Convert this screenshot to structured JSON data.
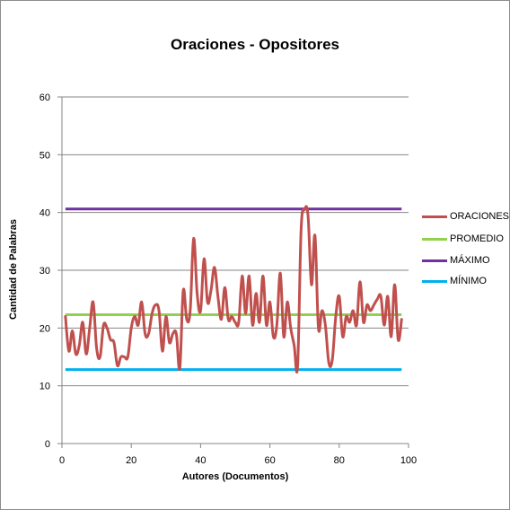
{
  "chart_data": {
    "type": "line",
    "title": "Oraciones - Opositores",
    "xlabel": "Autores (Documentos)",
    "ylabel": "Cantidad de Palabras",
    "xlim": [
      0,
      100
    ],
    "ylim": [
      0,
      60
    ],
    "x_ticks": [
      0,
      20,
      40,
      60,
      80,
      100
    ],
    "y_ticks": [
      0,
      10,
      20,
      30,
      40,
      50,
      60
    ],
    "grid": "horizontal",
    "legend_position": "right",
    "series": [
      {
        "name": "ORACIONES",
        "color": "#c0504d",
        "x": [
          1,
          2,
          3,
          4,
          5,
          6,
          7,
          8,
          9,
          10,
          11,
          12,
          13,
          14,
          15,
          16,
          17,
          18,
          19,
          20,
          21,
          22,
          23,
          24,
          25,
          26,
          27,
          28,
          29,
          30,
          31,
          32,
          33,
          34,
          35,
          36,
          37,
          38,
          39,
          40,
          41,
          42,
          43,
          44,
          45,
          46,
          47,
          48,
          49,
          50,
          51,
          52,
          53,
          54,
          55,
          56,
          57,
          58,
          59,
          60,
          61,
          62,
          63,
          64,
          65,
          66,
          67,
          68,
          69,
          70,
          71,
          72,
          73,
          74,
          75,
          76,
          77,
          78,
          79,
          80,
          81,
          82,
          83,
          84,
          85,
          86,
          87,
          88,
          89,
          90,
          91,
          92,
          93,
          94,
          95,
          96,
          97,
          98
        ],
        "values": [
          22,
          16,
          19.5,
          15.5,
          17,
          21,
          15.5,
          20,
          24.5,
          16.5,
          15,
          20.5,
          20,
          18,
          17.5,
          13.5,
          15,
          15,
          15,
          20,
          22,
          20.5,
          24.5,
          19,
          19,
          22.5,
          24,
          23,
          16,
          22,
          17.5,
          19,
          19,
          13,
          26.5,
          21.5,
          23,
          35.5,
          26,
          23,
          32,
          24.5,
          26.5,
          30.5,
          25.5,
          21.5,
          27,
          21.5,
          22,
          21,
          21,
          29,
          22.5,
          29,
          20.5,
          26,
          21,
          29,
          20.5,
          24.5,
          18.5,
          20.5,
          29.5,
          18.5,
          24.5,
          20,
          17,
          13.5,
          37,
          40.5,
          39.5,
          27.5,
          36,
          20,
          23,
          20.5,
          14,
          14.5,
          22,
          25.5,
          18.5,
          22,
          21,
          23,
          20.5,
          28,
          21,
          24,
          23,
          24,
          25,
          25.5,
          20.5,
          25.5,
          18.5,
          27.5,
          18,
          21.5
        ]
      },
      {
        "name": "PROMEDIO",
        "color": "#92d050",
        "y": 22.3
      },
      {
        "name": "MÁXIMO",
        "color": "#7030a0",
        "y": 40.6
      },
      {
        "name": "MÍNIMO",
        "color": "#00b0f0",
        "y": 12.8
      }
    ]
  }
}
